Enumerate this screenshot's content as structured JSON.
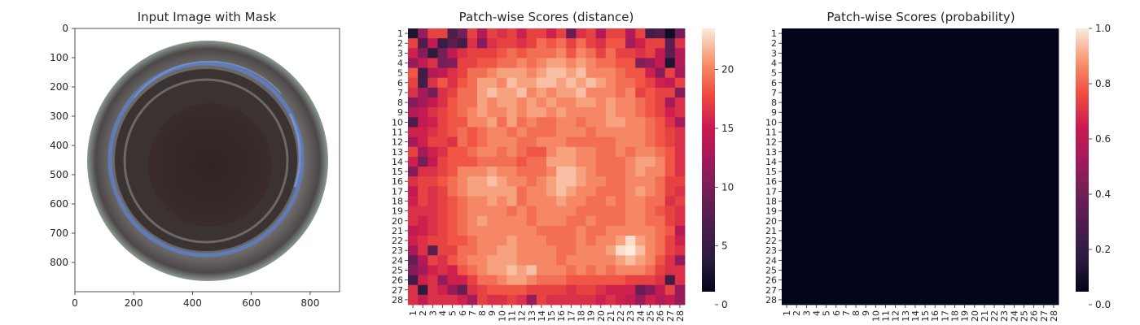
{
  "chart_data": [
    {
      "type": "image",
      "title": "Input Image with Mask",
      "xlim": [
        0,
        900
      ],
      "ylim": [
        900,
        0
      ],
      "xticks": [
        "0",
        "200",
        "400",
        "600",
        "800"
      ],
      "yticks": [
        "0",
        "100",
        "200",
        "300",
        "400",
        "500",
        "600",
        "700",
        "800"
      ],
      "image_description_colors": {
        "outer_ring": "#3e3636",
        "inner_ring": "#5a5656",
        "center": "#2e2222",
        "mask_tint": "#6a8fd8",
        "background": "#ffffff"
      }
    },
    {
      "type": "heatmap",
      "title": "Patch-wise Scores (distance)",
      "rows": 28,
      "cols": 28,
      "row_labels": [
        "1",
        "2",
        "3",
        "4",
        "5",
        "6",
        "7",
        "8",
        "9",
        "10",
        "11",
        "12",
        "13",
        "14",
        "15",
        "16",
        "17",
        "18",
        "19",
        "20",
        "21",
        "22",
        "23",
        "24",
        "25",
        "26",
        "27",
        "28"
      ],
      "col_labels": [
        "1",
        "2",
        "3",
        "4",
        "5",
        "6",
        "7",
        "8",
        "9",
        "10",
        "11",
        "12",
        "13",
        "14",
        "15",
        "16",
        "17",
        "18",
        "19",
        "20",
        "21",
        "22",
        "23",
        "24",
        "25",
        "26",
        "27",
        "28"
      ],
      "value_range": [
        0,
        23.5
      ],
      "colorbar_ticks": [
        "0",
        "5",
        "10",
        "15",
        "20"
      ],
      "colormap": "rocket",
      "values": [
        [
          2,
          11,
          17,
          17,
          6,
          9,
          17,
          13,
          17,
          16,
          17,
          15,
          17,
          17,
          15,
          17,
          8,
          16,
          17,
          13,
          17,
          17,
          13,
          17,
          5,
          6,
          1,
          9
        ],
        [
          17,
          6,
          14,
          4,
          7,
          5,
          16,
          10,
          16,
          17,
          17,
          16,
          17,
          19,
          18,
          19,
          17,
          19,
          17,
          16,
          18,
          18,
          12,
          15,
          17,
          17,
          7,
          16
        ],
        [
          15,
          10,
          3,
          9,
          14,
          16,
          17,
          17,
          17,
          18,
          19,
          18,
          19,
          19,
          19,
          20,
          18,
          20,
          19,
          17,
          19,
          17,
          17,
          16,
          17,
          14,
          7,
          13
        ],
        [
          11,
          14,
          16,
          9,
          10,
          17,
          17,
          18,
          18,
          19,
          19,
          20,
          19,
          20,
          21,
          21,
          20,
          21,
          20,
          19,
          19,
          18,
          18,
          10,
          11,
          14,
          2,
          13
        ],
        [
          18,
          5,
          13,
          14,
          16,
          17,
          19,
          19,
          20,
          21,
          21,
          21,
          20,
          21,
          22,
          22,
          21,
          22,
          20,
          20,
          20,
          19,
          18,
          18,
          15,
          10,
          17,
          12
        ],
        [
          17,
          5,
          16,
          18,
          16,
          18,
          19,
          21,
          21,
          20,
          22,
          21,
          21,
          22,
          22,
          21,
          22,
          21,
          22,
          21,
          20,
          19,
          19,
          18,
          17,
          15,
          14,
          17
        ],
        [
          16,
          12,
          9,
          16,
          17,
          19,
          19,
          21,
          22,
          21,
          21,
          22,
          20,
          21,
          20,
          21,
          21,
          22,
          20,
          20,
          20,
          19,
          20,
          17,
          18,
          17,
          17,
          10
        ],
        [
          10,
          12,
          14,
          16,
          18,
          19,
          19,
          21,
          20,
          21,
          21,
          20,
          21,
          20,
          21,
          20,
          20,
          21,
          21,
          20,
          21,
          20,
          20,
          19,
          18,
          17,
          12,
          16
        ],
        [
          13,
          14,
          16,
          17,
          18,
          19,
          20,
          21,
          20,
          20,
          21,
          20,
          21,
          21,
          20,
          21,
          20,
          20,
          20,
          20,
          21,
          20,
          20,
          19,
          18,
          17,
          15,
          16
        ],
        [
          6,
          14,
          15,
          17,
          18,
          18,
          20,
          20,
          21,
          19,
          21,
          19,
          20,
          19,
          19,
          20,
          20,
          19,
          20,
          20,
          21,
          21,
          20,
          20,
          19,
          18,
          16,
          12
        ],
        [
          15,
          15,
          16,
          17,
          18,
          19,
          18,
          19,
          20,
          20,
          19,
          20,
          19,
          19,
          19,
          20,
          20,
          20,
          19,
          20,
          20,
          20,
          20,
          20,
          19,
          18,
          17,
          16
        ],
        [
          12,
          15,
          17,
          17,
          16,
          19,
          18,
          19,
          20,
          20,
          20,
          19,
          19,
          20,
          20,
          20,
          19,
          19,
          19,
          19,
          19,
          20,
          20,
          20,
          19,
          18,
          17,
          16
        ],
        [
          17,
          12,
          15,
          16,
          18,
          18,
          19,
          20,
          20,
          19,
          20,
          19,
          18,
          18,
          20,
          21,
          21,
          20,
          20,
          19,
          19,
          20,
          19,
          20,
          20,
          19,
          18,
          16
        ],
        [
          15,
          9,
          14,
          17,
          18,
          18,
          18,
          19,
          19,
          19,
          19,
          18,
          19,
          19,
          21,
          21,
          21,
          20,
          20,
          19,
          19,
          19,
          20,
          21,
          21,
          20,
          18,
          16
        ],
        [
          10,
          16,
          16,
          17,
          18,
          20,
          20,
          20,
          21,
          20,
          20,
          19,
          19,
          19,
          20,
          22,
          22,
          21,
          20,
          19,
          19,
          19,
          20,
          21,
          20,
          20,
          18,
          16
        ],
        [
          16,
          17,
          17,
          18,
          19,
          20,
          21,
          21,
          22,
          21,
          20,
          20,
          19,
          20,
          21,
          22,
          22,
          21,
          20,
          20,
          19,
          19,
          20,
          20,
          20,
          19,
          17,
          17
        ],
        [
          14,
          17,
          16,
          17,
          19,
          20,
          21,
          21,
          21,
          21,
          21,
          19,
          20,
          20,
          21,
          22,
          21,
          20,
          20,
          19,
          19,
          19,
          20,
          21,
          20,
          19,
          17,
          16
        ],
        [
          15,
          17,
          16,
          17,
          18,
          19,
          20,
          20,
          21,
          20,
          21,
          19,
          20,
          20,
          20,
          21,
          20,
          20,
          19,
          19,
          20,
          19,
          20,
          20,
          19,
          19,
          16,
          17
        ],
        [
          16,
          16,
          16,
          17,
          18,
          19,
          20,
          20,
          20,
          20,
          19,
          20,
          19,
          20,
          20,
          20,
          20,
          19,
          19,
          19,
          19,
          19,
          20,
          20,
          19,
          18,
          17,
          16
        ],
        [
          16,
          15,
          16,
          17,
          18,
          19,
          20,
          21,
          20,
          20,
          20,
          20,
          19,
          20,
          20,
          20,
          19,
          19,
          20,
          19,
          19,
          19,
          20,
          20,
          19,
          19,
          17,
          16
        ],
        [
          14,
          15,
          16,
          17,
          18,
          19,
          20,
          20,
          20,
          20,
          20,
          20,
          20,
          19,
          19,
          19,
          19,
          20,
          19,
          19,
          20,
          20,
          20,
          20,
          20,
          19,
          18,
          13
        ],
        [
          15,
          16,
          17,
          17,
          18,
          18,
          19,
          20,
          20,
          20,
          21,
          20,
          20,
          20,
          19,
          19,
          19,
          20,
          19,
          20,
          20,
          21,
          23,
          21,
          20,
          19,
          17,
          15
        ],
        [
          12,
          16,
          7,
          17,
          17,
          19,
          19,
          20,
          20,
          21,
          21,
          20,
          20,
          20,
          20,
          19,
          19,
          20,
          20,
          20,
          21,
          23,
          24,
          22,
          20,
          19,
          17,
          16
        ],
        [
          8,
          13,
          17,
          16,
          18,
          19,
          20,
          20,
          21,
          21,
          21,
          20,
          20,
          20,
          20,
          19,
          20,
          20,
          20,
          20,
          20,
          21,
          22,
          21,
          20,
          18,
          16,
          11
        ],
        [
          10,
          12,
          15,
          16,
          15,
          18,
          19,
          20,
          21,
          21,
          22,
          21,
          22,
          20,
          20,
          20,
          19,
          20,
          19,
          20,
          19,
          20,
          20,
          20,
          19,
          17,
          16,
          16
        ],
        [
          5,
          15,
          16,
          11,
          15,
          15,
          17,
          19,
          19,
          20,
          21,
          21,
          20,
          19,
          19,
          19,
          18,
          18,
          18,
          18,
          18,
          18,
          17,
          17,
          17,
          16,
          5,
          16
        ],
        [
          16,
          3,
          16,
          15,
          11,
          8,
          16,
          17,
          18,
          18,
          18,
          18,
          17,
          17,
          17,
          17,
          16,
          17,
          17,
          16,
          15,
          15,
          15,
          8,
          10,
          14,
          17,
          11
        ],
        [
          16,
          14,
          16,
          16,
          16,
          15,
          12,
          17,
          16,
          16,
          17,
          16,
          11,
          17,
          16,
          16,
          16,
          16,
          16,
          15,
          16,
          15,
          14,
          11,
          15,
          13,
          14,
          11
        ]
      ]
    },
    {
      "type": "heatmap",
      "title": "Patch-wise Scores (probability)",
      "rows": 28,
      "cols": 28,
      "row_labels": [
        "1",
        "2",
        "3",
        "4",
        "5",
        "6",
        "7",
        "8",
        "9",
        "10",
        "11",
        "12",
        "13",
        "14",
        "15",
        "16",
        "17",
        "18",
        "19",
        "20",
        "21",
        "22",
        "23",
        "24",
        "25",
        "26",
        "27",
        "28"
      ],
      "col_labels": [
        "1",
        "2",
        "3",
        "4",
        "5",
        "6",
        "7",
        "8",
        "9",
        "10",
        "11",
        "12",
        "13",
        "14",
        "15",
        "16",
        "17",
        "18",
        "19",
        "20",
        "21",
        "22",
        "23",
        "24",
        "25",
        "26",
        "27",
        "28"
      ],
      "value_range": [
        0,
        1.0
      ],
      "colorbar_ticks": [
        "0.0",
        "0.2",
        "0.4",
        "0.6",
        "0.8",
        "1.0"
      ],
      "colormap": "rocket",
      "fill_value": 0,
      "cell_color": "#03051a"
    }
  ]
}
